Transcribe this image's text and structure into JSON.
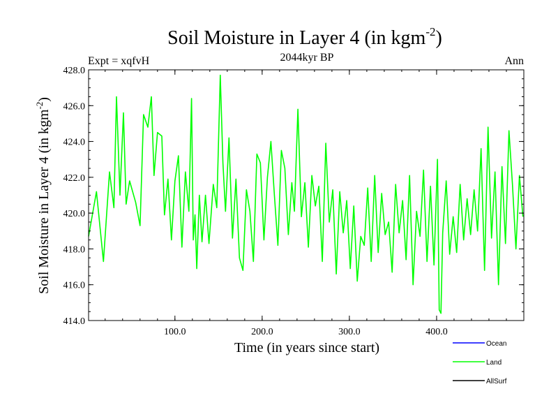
{
  "chart_data": {
    "type": "line",
    "title_main": "Soil Moisture in Layer 4 (in kgm",
    "title_sup": "-2",
    "title_close": ")",
    "subtitle": "2044kyr BP",
    "left_label": "Expt = xqfvH",
    "right_label": "Ann",
    "xlabel": "Time (in years since start)",
    "ylabel_main": "Soil Moisture in Layer 4 (in kgm",
    "ylabel_sup": "-2",
    "ylabel_close": ")",
    "xlim": [
      1,
      500
    ],
    "ylim": [
      414.0,
      428.0
    ],
    "xticks": [
      100,
      200,
      300,
      400
    ],
    "xtick_labels": [
      "100.0",
      "200.0",
      "300.0",
      "400.0"
    ],
    "yticks": [
      414,
      416,
      418,
      420,
      422,
      424,
      426,
      428
    ],
    "ytick_labels": [
      "414.0",
      "416.0",
      "418.0",
      "420.0",
      "422.0",
      "424.0",
      "426.0",
      "428.0"
    ],
    "legend": [
      {
        "name": "Ocean",
        "color": "#0000ff"
      },
      {
        "name": "Land",
        "color": "#00ff00"
      },
      {
        "name": "AllSurf",
        "color": "#000000"
      }
    ],
    "series": [
      {
        "name": "Land",
        "color": "#00ff00",
        "x": [
          1,
          10,
          18,
          25,
          30,
          33,
          37,
          41,
          44,
          48,
          55,
          60,
          64,
          69,
          73,
          76,
          80,
          85,
          88,
          92,
          96,
          100,
          104,
          108,
          112,
          116,
          119,
          121,
          123,
          125,
          128,
          131,
          135,
          139,
          144,
          148,
          152,
          155,
          158,
          162,
          166,
          170,
          174,
          178,
          182,
          186,
          190,
          194,
          198,
          202,
          206,
          210,
          214,
          218,
          222,
          226,
          230,
          234,
          237,
          241,
          245,
          249,
          253,
          257,
          261,
          265,
          269,
          273,
          277,
          281,
          285,
          289,
          293,
          297,
          301,
          305,
          309,
          313,
          317,
          321,
          325,
          329,
          333,
          337,
          341,
          345,
          349,
          353,
          357,
          361,
          365,
          369,
          373,
          377,
          381,
          385,
          389,
          393,
          397,
          401,
          403,
          405,
          407,
          411,
          415,
          419,
          423,
          427,
          431,
          435,
          439,
          443,
          447,
          451,
          455,
          459,
          463,
          467,
          471,
          475,
          479,
          483,
          487,
          491,
          495,
          499
        ],
        "values": [
          418.7,
          421.2,
          417.3,
          422.3,
          420.3,
          426.5,
          421.0,
          425.6,
          420.5,
          421.8,
          420.6,
          419.3,
          425.5,
          424.8,
          426.5,
          422.1,
          424.5,
          424.3,
          419.9,
          421.9,
          418.5,
          421.8,
          423.2,
          418.1,
          422.3,
          420.1,
          426.4,
          418.5,
          419.9,
          416.9,
          421.0,
          418.4,
          421.0,
          418.3,
          421.6,
          420.3,
          427.7,
          422.8,
          420.1,
          424.2,
          418.6,
          421.9,
          417.5,
          416.8,
          421.3,
          420.1,
          417.3,
          423.3,
          422.8,
          418.5,
          422.0,
          424.0,
          421.0,
          418.2,
          423.5,
          422.5,
          418.8,
          421.7,
          420.1,
          425.8,
          419.8,
          421.7,
          418.1,
          422.1,
          420.4,
          421.5,
          417.3,
          423.9,
          419.5,
          421.3,
          416.6,
          421.2,
          418.9,
          420.7,
          416.9,
          420.4,
          416.2,
          418.7,
          418.2,
          421.4,
          417.3,
          422.1,
          417.8,
          421.1,
          418.8,
          419.5,
          416.7,
          421.6,
          418.9,
          420.7,
          417.4,
          422.1,
          416.0,
          420.1,
          418.7,
          422.4,
          417.3,
          421.5,
          417.1,
          423.0,
          414.6,
          414.4,
          418.9,
          421.8,
          417.7,
          419.8,
          417.8,
          421.6,
          418.5,
          420.8,
          418.8,
          421.3,
          419.0,
          423.6,
          416.8,
          424.8,
          418.6,
          422.3,
          416.0,
          422.6,
          418.3,
          424.6,
          421.6,
          418.0,
          422.1,
          419.8
        ]
      }
    ]
  }
}
